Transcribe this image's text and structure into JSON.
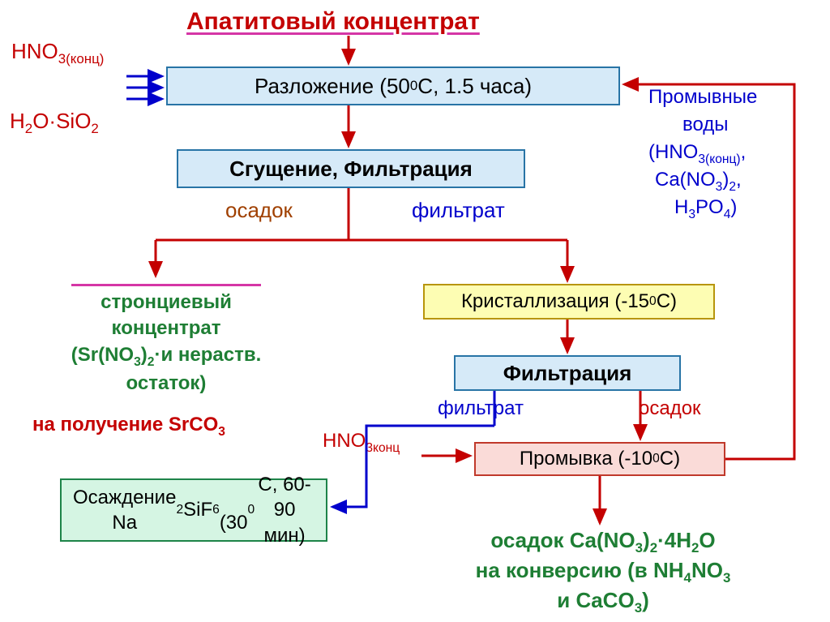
{
  "type": "flowchart",
  "background_color": "#ffffff",
  "font_family": "Arial",
  "title": {
    "text": "Апатитовый концентрат",
    "color": "#c40000",
    "fontsize": 30,
    "underline_color": "#d536a6"
  },
  "input_labels": {
    "hno3": "HNO<sub>3(конц)</sub>",
    "h2osio2": "H<sub>2</sub>O·SiO<sub>2</sub>",
    "color": "#c40000",
    "fontsize": 26
  },
  "side_note": {
    "lines": [
      "Промывные",
      "воды",
      "(HNO<sub>3(конц)</sub>,",
      "Ca(NO<sub>3</sub>)<sub>2</sub>,",
      "H<sub>3</sub>PO<sub>4</sub>)"
    ],
    "color": "#0000cc",
    "fontsize": 24
  },
  "branch_labels": {
    "osadok1": {
      "text": "осадок",
      "color": "#a04000"
    },
    "filtrat1": {
      "text": "фильтрат",
      "color": "#0000cc"
    },
    "filtrat2": {
      "text": "фильтрат",
      "color": "#0000cc"
    },
    "osadok2": {
      "text": "осадок",
      "color": "#c40000"
    },
    "hno3_in": {
      "text": "HNO<sub>3конц</sub>",
      "color": "#c40000"
    }
  },
  "nodes": {
    "razl": {
      "label": "Разложение (50 <sup>0</sup>С, 1.5 часа)",
      "fill": "#d6eaf8",
      "border": "#2874a6",
      "text_color": "#000000",
      "fontsize": 26,
      "bold": false
    },
    "sgush": {
      "label": "Сгущение, Фильтрация",
      "fill": "#d6eaf8",
      "border": "#2874a6",
      "text_color": "#000000",
      "fontsize": 26,
      "bold": true
    },
    "krist": {
      "label": "Кристаллизация (-15<sup>0</sup>С)",
      "fill": "#fdfdb3",
      "border": "#b7950b",
      "text_color": "#000000",
      "fontsize": 24,
      "bold": false
    },
    "filtr2": {
      "label": "Фильтрация",
      "fill": "#d6eaf8",
      "border": "#2874a6",
      "text_color": "#000000",
      "fontsize": 26,
      "bold": true
    },
    "prom": {
      "label": "Промывка (-10 <sup>0</sup>С)",
      "fill": "#fadbd8",
      "border": "#c0392b",
      "text_color": "#000000",
      "fontsize": 24,
      "bold": false
    },
    "osazhd": {
      "label": "Осаждение Na<sub>2</sub>SiF<sub>6</sub><br>(30 <sup>0</sup>С, 60-90 мин)",
      "fill": "#d5f5e3",
      "border": "#1e8449",
      "text_color": "#000000",
      "fontsize": 24,
      "bold": false
    }
  },
  "text_blocks": {
    "stront": {
      "html": "стронциевый<br>концентрат<br>(Sr(NO<sub>3</sub>)<sub>2</sub>·и нераств.<br>остаток)",
      "color": "#1e7e34",
      "bold": true,
      "fontsize": 24,
      "underline": true
    },
    "srco3": {
      "html": "на получение SrCO<sub>3</sub>",
      "color": "#c40000",
      "bold": true,
      "fontsize": 24
    },
    "final": {
      "html": "осадок Ca(NO<sub>3</sub>)<sub>2</sub>·4H<sub>2</sub>O<br>на конверсию (в NH<sub>4</sub>NO<sub>3</sub><br>и CaCO<sub>3</sub>)",
      "color": "#1e7e34",
      "bold": true,
      "fontsize": 26
    }
  },
  "arrow_style": {
    "red": "#c40000",
    "blue": "#0000cc",
    "stroke_width": 3
  }
}
